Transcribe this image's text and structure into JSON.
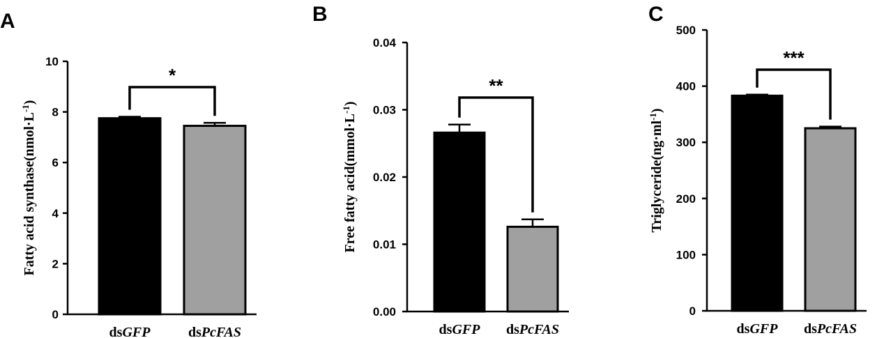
{
  "colors": {
    "dsGFP": "#000000",
    "dsPcFAS": "#a0a0a0",
    "axis": "#000000"
  },
  "chart_data": [
    {
      "panel": "A",
      "type": "bar",
      "categories": [
        {
          "prefix": "ds",
          "gene": "GFP"
        },
        {
          "prefix": "ds",
          "gene": "PcFAS"
        }
      ],
      "values": [
        7.75,
        7.45
      ],
      "errors": [
        0.06,
        0.12
      ],
      "ylabel": {
        "main": "Fatty acid synthase(nmol·L",
        "sup": "-1",
        "tail": ")"
      },
      "ylim": [
        0,
        10
      ],
      "yticks": [
        "0",
        "2",
        "4",
        "6",
        "8",
        "10"
      ],
      "significance": "*"
    },
    {
      "panel": "B",
      "type": "bar",
      "categories": [
        {
          "prefix": "ds",
          "gene": "GFP"
        },
        {
          "prefix": "ds",
          "gene": "PcFAS"
        }
      ],
      "values": [
        0.0266,
        0.0126
      ],
      "errors": [
        0.0012,
        0.0011
      ],
      "ylabel": {
        "main": "Free fatty acid(mmol·L",
        "sup": "-1",
        "tail": ")"
      },
      "ylim": [
        0,
        0.04
      ],
      "yticks": [
        "0.00",
        "0.01",
        "0.02",
        "0.03",
        "0.04"
      ],
      "significance": "**"
    },
    {
      "panel": "C",
      "type": "bar",
      "categories": [
        {
          "prefix": "ds",
          "gene": "GFP"
        },
        {
          "prefix": "ds",
          "gene": "PcFAS"
        }
      ],
      "values": [
        383,
        325
      ],
      "errors": [
        2,
        3
      ],
      "ylabel": {
        "main": "Triglyceride(ng·ml",
        "sup": "-1",
        "tail": ")"
      },
      "ylim": [
        0,
        500
      ],
      "yticks": [
        "0",
        "100",
        "200",
        "300",
        "400",
        "500"
      ],
      "significance": "***"
    }
  ]
}
